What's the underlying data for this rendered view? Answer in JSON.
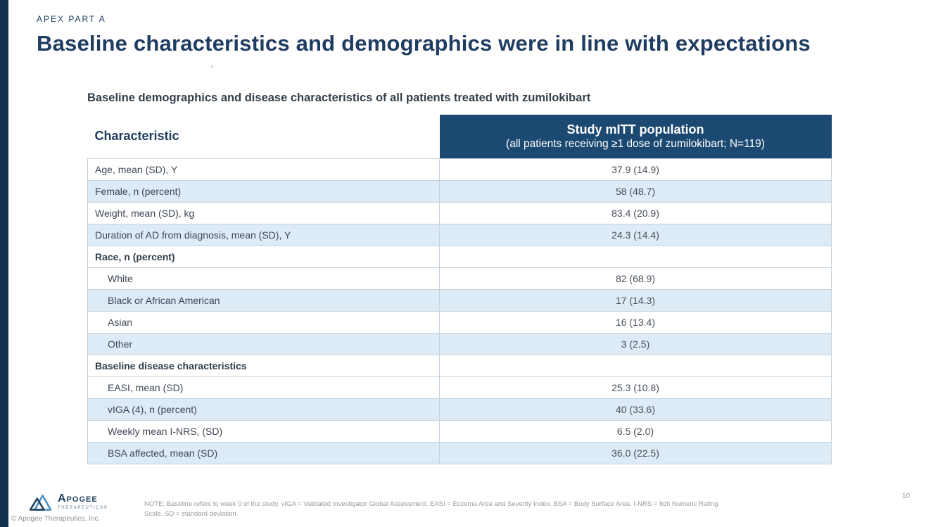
{
  "slide": {
    "eyebrow": "APEX PART A",
    "title": "Baseline characteristics and demographics were in line with expectations",
    "stray_mark": "'",
    "table_title": "Baseline demographics and disease characteristics of all patients treated with zumilokibart",
    "page_number": "10"
  },
  "table": {
    "col1_header": "Characteristic",
    "col2_header_line1": "Study mITT population",
    "col2_header_line2": "(all patients receiving ≥1 dose of zumilokibart; N=119)",
    "rows": [
      {
        "label": "Age, mean (SD), Y",
        "value": "37.9 (14.9)",
        "type": "data",
        "shaded": false,
        "indent": false
      },
      {
        "label": "Female, n (percent)",
        "value": "58 (48.7)",
        "type": "data",
        "shaded": true,
        "indent": false
      },
      {
        "label": "Weight, mean (SD), kg",
        "value": "83.4 (20.9)",
        "type": "data",
        "shaded": false,
        "indent": false
      },
      {
        "label": "Duration of AD from diagnosis, mean (SD), Y",
        "value": "24.3 (14.4)",
        "type": "data",
        "shaded": true,
        "indent": false
      },
      {
        "label": "Race, n (percent)",
        "value": "",
        "type": "section",
        "shaded": false,
        "indent": false
      },
      {
        "label": "White",
        "value": "82 (68.9)",
        "type": "data",
        "shaded": false,
        "indent": true
      },
      {
        "label": "Black or African American",
        "value": "17 (14.3)",
        "type": "data",
        "shaded": true,
        "indent": true
      },
      {
        "label": "Asian",
        "value": "16 (13.4)",
        "type": "data",
        "shaded": false,
        "indent": true
      },
      {
        "label": "Other",
        "value": "3 (2.5)",
        "type": "data",
        "shaded": true,
        "indent": true
      },
      {
        "label": "Baseline disease characteristics",
        "value": "",
        "type": "section",
        "shaded": false,
        "indent": false
      },
      {
        "label": "EASI, mean (SD)",
        "value": "25.3 (10.8)",
        "type": "data",
        "shaded": false,
        "indent": true
      },
      {
        "label": "vIGA (4), n (percent)",
        "value": "40 (33.6)",
        "type": "data",
        "shaded": true,
        "indent": true
      },
      {
        "label": "Weekly mean I-NRS, (SD)",
        "value": "6.5 (2.0)",
        "type": "data",
        "shaded": false,
        "indent": true
      },
      {
        "label": "BSA affected, mean (SD)",
        "value": "36.0 (22.5)",
        "type": "data",
        "shaded": true,
        "indent": true
      }
    ]
  },
  "footer": {
    "logo_name": "Apogee",
    "logo_sub": "THERAPEUTICS®",
    "copyright": "© Apogee Therapeutics, Inc.",
    "note": "NOTE: Baseline refers to week 0 of the study. vIGA = Validated Investigator Global Assessment. EASI = Eczema Area and Severity Index. BSA = Body Surface Area. I-NRS = Itch Numeric Rating Scale. SD = standard deviation."
  },
  "colors": {
    "navy": "#1f3c61",
    "header_bg": "#1b4972",
    "left_bar": "#10304e",
    "row_stripe": "#ddebf7",
    "border": "#c6d2dc"
  }
}
